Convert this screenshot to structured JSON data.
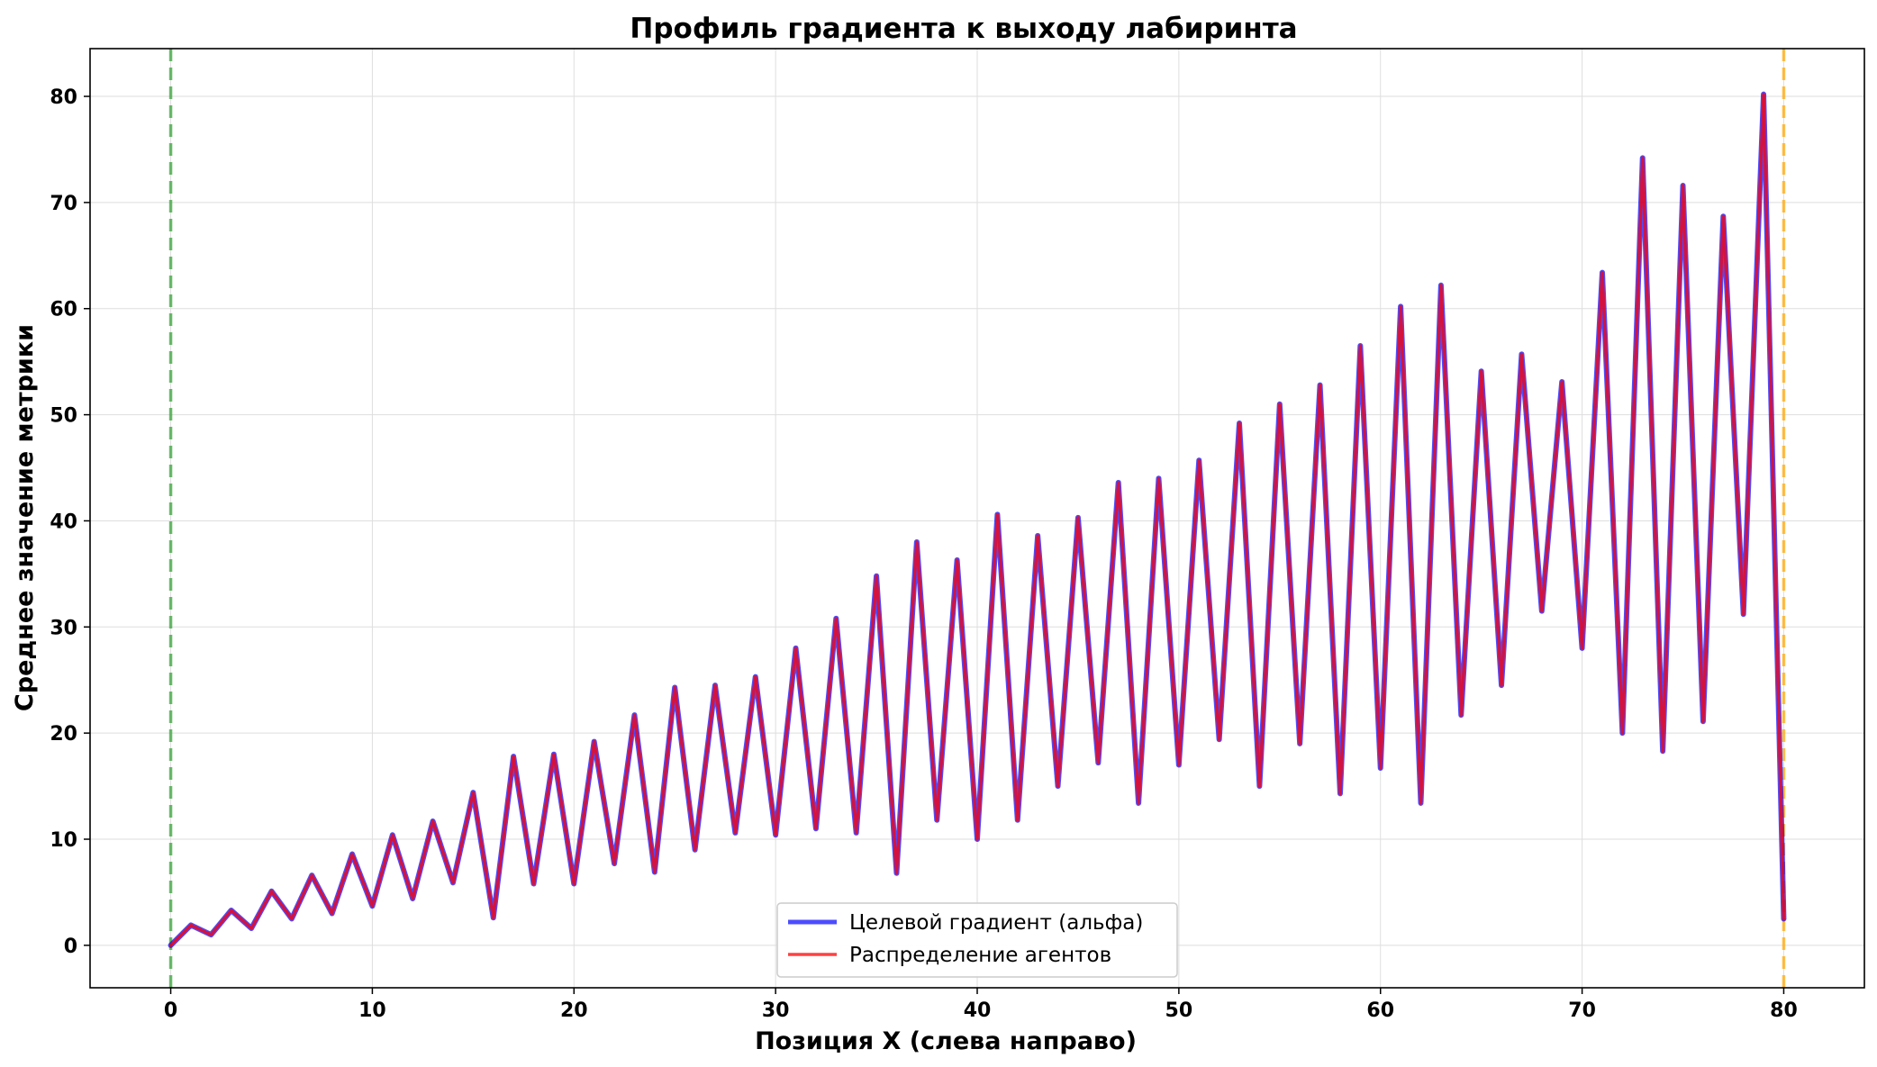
{
  "chart_data": {
    "type": "line",
    "title": "Профиль градиента к выходу лабиринта",
    "xlabel": "Позиция X (слева направо)",
    "ylabel": "Среднее значение метрики",
    "xlim": [
      -4,
      84
    ],
    "ylim": [
      -4,
      84.5
    ],
    "xticks": [
      0,
      10,
      20,
      30,
      40,
      50,
      60,
      70,
      80
    ],
    "yticks": [
      0,
      10,
      20,
      30,
      40,
      50,
      60,
      70,
      80
    ],
    "grid": true,
    "legend_position": "lower-center",
    "x": [
      0,
      1,
      2,
      3,
      4,
      5,
      6,
      7,
      8,
      9,
      10,
      11,
      12,
      13,
      14,
      15,
      16,
      17,
      18,
      19,
      20,
      21,
      22,
      23,
      24,
      25,
      26,
      27,
      28,
      29,
      30,
      31,
      32,
      33,
      34,
      35,
      36,
      37,
      38,
      39,
      40,
      41,
      42,
      43,
      44,
      45,
      46,
      47,
      48,
      49,
      50,
      51,
      52,
      53,
      54,
      55,
      56,
      57,
      58,
      59,
      60,
      61,
      62,
      63,
      64,
      65,
      66,
      67,
      68,
      69,
      70,
      71,
      72,
      73,
      74,
      75,
      76,
      77,
      78,
      79,
      80
    ],
    "series": [
      {
        "name": "Целевой градиент (альфа)",
        "color": "#0000ff",
        "values": [
          0,
          1.9,
          1.0,
          3.3,
          1.6,
          5.1,
          2.5,
          6.6,
          3.0,
          8.6,
          3.7,
          10.4,
          4.4,
          11.7,
          5.9,
          14.4,
          2.6,
          17.8,
          5.8,
          18.0,
          5.8,
          19.2,
          7.7,
          21.7,
          6.9,
          24.3,
          9.0,
          24.5,
          10.6,
          25.3,
          10.4,
          28.0,
          11.0,
          30.8,
          10.6,
          34.8,
          6.8,
          38.0,
          11.8,
          36.3,
          10.0,
          40.6,
          11.8,
          38.6,
          15.0,
          40.3,
          17.2,
          43.6,
          13.4,
          44.0,
          17.0,
          45.7,
          19.4,
          49.2,
          15.0,
          51.0,
          19.0,
          52.8,
          14.3,
          56.5,
          16.7,
          60.2,
          13.4,
          62.2,
          21.7,
          54.1,
          24.5,
          55.7,
          31.5,
          53.1,
          28.0,
          63.4,
          20.0,
          74.2,
          18.3,
          71.6,
          21.1,
          68.7,
          31.2,
          80.2,
          2.5
        ]
      },
      {
        "name": "Распределение агентов",
        "color": "#ff0000",
        "values": [
          0,
          1.9,
          1.0,
          3.3,
          1.6,
          5.1,
          2.5,
          6.6,
          3.0,
          8.6,
          3.7,
          10.4,
          4.4,
          11.7,
          5.9,
          14.4,
          2.6,
          17.8,
          5.8,
          18.0,
          5.8,
          19.2,
          7.7,
          21.7,
          6.9,
          24.3,
          9.0,
          24.5,
          10.6,
          25.3,
          10.4,
          28.0,
          11.0,
          30.8,
          10.6,
          34.8,
          6.8,
          38.0,
          11.8,
          36.3,
          10.0,
          40.6,
          11.8,
          38.6,
          15.0,
          40.3,
          17.2,
          43.6,
          13.4,
          44.0,
          17.0,
          45.7,
          19.4,
          49.2,
          15.0,
          51.0,
          19.0,
          52.8,
          14.3,
          56.5,
          16.7,
          60.2,
          13.4,
          62.2,
          21.7,
          54.1,
          24.5,
          55.7,
          31.5,
          53.1,
          28.0,
          63.4,
          20.0,
          74.2,
          18.3,
          71.6,
          21.1,
          68.7,
          31.2,
          80.2,
          2.5
        ]
      }
    ],
    "vlines": [
      {
        "x": 0,
        "color": "#2ca02c",
        "style": "dashed"
      },
      {
        "x": 80,
        "color": "#ffa500",
        "style": "dashed"
      }
    ]
  }
}
